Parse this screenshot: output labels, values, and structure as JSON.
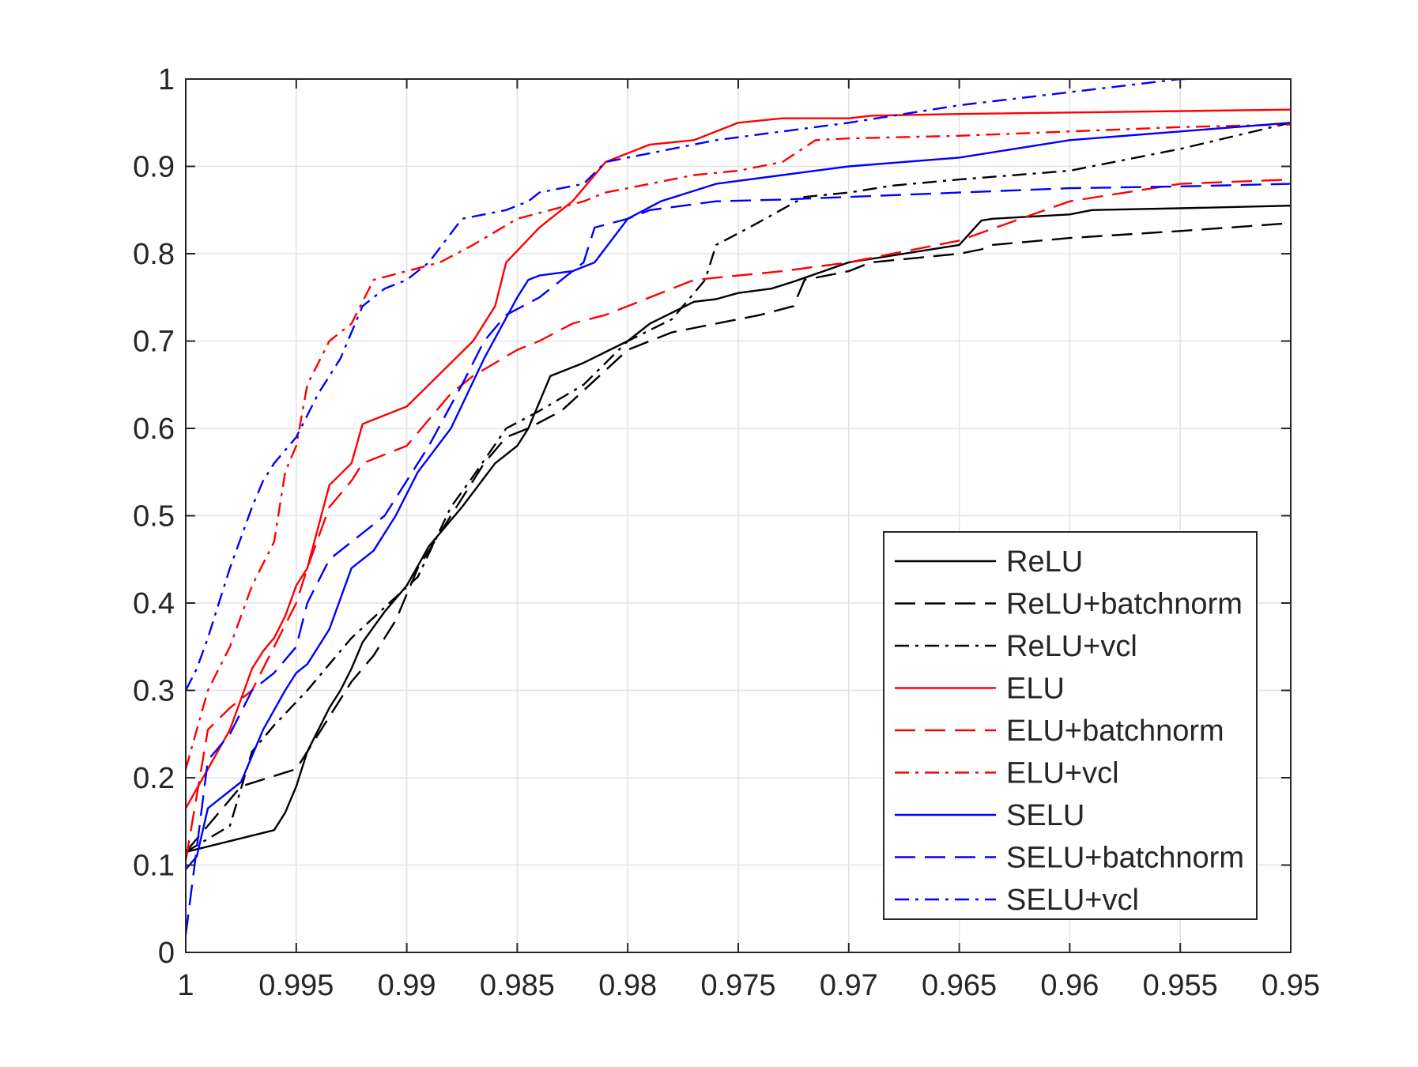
{
  "chart_data": {
    "type": "line",
    "title": "",
    "xlabel": "",
    "ylabel": "",
    "xlim": [
      1,
      0.95
    ],
    "ylim": [
      0,
      1
    ],
    "x_reversed": true,
    "grid": true,
    "legend_position": "bottom-right",
    "xticks": [
      1,
      0.995,
      0.99,
      0.985,
      0.98,
      0.975,
      0.97,
      0.965,
      0.96,
      0.955,
      0.95
    ],
    "xtick_labels": [
      "1",
      "0.995",
      "0.99",
      "0.985",
      "0.98",
      "0.975",
      "0.97",
      "0.965",
      "0.96",
      "0.955",
      "0.95"
    ],
    "yticks": [
      0,
      0.1,
      0.2,
      0.3,
      0.4,
      0.5,
      0.6,
      0.7,
      0.8,
      0.9,
      1
    ],
    "ytick_labels": [
      "0",
      "0.1",
      "0.2",
      "0.3",
      "0.4",
      "0.5",
      "0.6",
      "0.7",
      "0.8",
      "0.9",
      "1"
    ],
    "series": [
      {
        "name": "ReLU",
        "color": "#000000",
        "style": "solid",
        "x": [
          1,
          0.996,
          0.9955,
          0.995,
          0.9945,
          0.9935,
          0.993,
          0.9925,
          0.992,
          0.991,
          0.99,
          0.989,
          0.9875,
          0.986,
          0.985,
          0.9845,
          0.984,
          0.9835,
          0.982,
          0.98,
          0.979,
          0.977,
          0.976,
          0.975,
          0.9735,
          0.9725,
          0.97,
          0.965,
          0.964,
          0.9635,
          0.96,
          0.959,
          0.955,
          0.95
        ],
        "y": [
          0.115,
          0.14,
          0.16,
          0.19,
          0.23,
          0.28,
          0.3,
          0.325,
          0.355,
          0.39,
          0.42,
          0.465,
          0.51,
          0.56,
          0.58,
          0.6,
          0.63,
          0.66,
          0.675,
          0.7,
          0.72,
          0.745,
          0.748,
          0.755,
          0.76,
          0.768,
          0.79,
          0.81,
          0.838,
          0.84,
          0.845,
          0.85,
          0.852,
          0.855
        ]
      },
      {
        "name": "ReLU+batchnorm",
        "color": "#000000",
        "style": "dashed",
        "x": [
          1,
          0.9975,
          0.995,
          0.994,
          0.9925,
          0.9915,
          0.9905,
          0.9895,
          0.988,
          0.9865,
          0.9855,
          0.9845,
          0.983,
          0.98,
          0.978,
          0.976,
          0.974,
          0.9725,
          0.972,
          0.97,
          0.969,
          0.965,
          0.964,
          0.9635,
          0.96,
          0.955,
          0.95
        ],
        "y": [
          0.115,
          0.19,
          0.21,
          0.25,
          0.31,
          0.34,
          0.38,
          0.44,
          0.5,
          0.56,
          0.59,
          0.6,
          0.62,
          0.69,
          0.71,
          0.72,
          0.73,
          0.74,
          0.77,
          0.78,
          0.79,
          0.8,
          0.805,
          0.81,
          0.818,
          0.826,
          0.835
        ]
      },
      {
        "name": "ReLU+vcl",
        "color": "#000000",
        "style": "dashdot",
        "x": [
          1,
          0.998,
          0.997,
          0.996,
          0.9945,
          0.9935,
          0.9925,
          0.991,
          0.9895,
          0.988,
          0.987,
          0.9855,
          0.984,
          0.982,
          0.98,
          0.978,
          0.9765,
          0.976,
          0.9745,
          0.972,
          0.97,
          0.968,
          0.965,
          0.96,
          0.955,
          0.95
        ],
        "y": [
          0.115,
          0.145,
          0.23,
          0.26,
          0.3,
          0.33,
          0.36,
          0.395,
          0.43,
          0.51,
          0.545,
          0.6,
          0.62,
          0.65,
          0.7,
          0.725,
          0.77,
          0.81,
          0.83,
          0.865,
          0.87,
          0.878,
          0.885,
          0.895,
          0.92,
          0.95
        ]
      },
      {
        "name": "ELU",
        "color": "#ff0000",
        "style": "solid",
        "x": [
          1,
          0.999,
          0.998,
          0.997,
          0.9965,
          0.996,
          0.9955,
          0.995,
          0.9945,
          0.9935,
          0.9925,
          0.992,
          0.991,
          0.99,
          0.987,
          0.986,
          0.9855,
          0.984,
          0.9835,
          0.9825,
          0.981,
          0.9805,
          0.98,
          0.979,
          0.977,
          0.975,
          0.973,
          0.97,
          0.969,
          0.965,
          0.95
        ],
        "y": [
          0.165,
          0.21,
          0.255,
          0.325,
          0.345,
          0.36,
          0.385,
          0.42,
          0.44,
          0.535,
          0.56,
          0.605,
          0.615,
          0.625,
          0.7,
          0.74,
          0.79,
          0.83,
          0.84,
          0.86,
          0.905,
          0.91,
          0.915,
          0.925,
          0.93,
          0.95,
          0.955,
          0.955,
          0.958,
          0.96,
          0.965
        ]
      },
      {
        "name": "ELU+batchnorm",
        "color": "#ff0000",
        "style": "dashed",
        "x": [
          1,
          0.999,
          0.998,
          0.997,
          0.996,
          0.995,
          0.9945,
          0.9935,
          0.9925,
          0.992,
          0.99,
          0.988,
          0.987,
          0.985,
          0.984,
          0.9825,
          0.981,
          0.979,
          0.977,
          0.975,
          0.973,
          0.97,
          0.965,
          0.96,
          0.955,
          0.95
        ],
        "y": [
          0.105,
          0.255,
          0.28,
          0.3,
          0.35,
          0.4,
          0.44,
          0.51,
          0.54,
          0.56,
          0.58,
          0.64,
          0.66,
          0.69,
          0.7,
          0.72,
          0.73,
          0.75,
          0.77,
          0.775,
          0.78,
          0.79,
          0.815,
          0.86,
          0.88,
          0.885
        ]
      },
      {
        "name": "ELU+vcl",
        "color": "#ff0000",
        "style": "dashdot",
        "x": [
          1,
          0.999,
          0.998,
          0.997,
          0.996,
          0.9955,
          0.995,
          0.9945,
          0.9935,
          0.9925,
          0.9915,
          0.99,
          0.9885,
          0.987,
          0.985,
          0.9835,
          0.982,
          0.981,
          0.979,
          0.977,
          0.975,
          0.973,
          0.9715,
          0.97,
          0.965,
          0.96,
          0.955,
          0.95
        ],
        "y": [
          0.21,
          0.3,
          0.35,
          0.42,
          0.47,
          0.55,
          0.58,
          0.65,
          0.7,
          0.72,
          0.77,
          0.78,
          0.79,
          0.81,
          0.84,
          0.85,
          0.86,
          0.87,
          0.88,
          0.89,
          0.895,
          0.905,
          0.93,
          0.932,
          0.935,
          0.94,
          0.945,
          0.948
        ]
      },
      {
        "name": "SELU",
        "color": "#0000ff",
        "style": "solid",
        "x": [
          1,
          0.9995,
          0.999,
          0.9985,
          0.9975,
          0.9965,
          0.9955,
          0.995,
          0.9945,
          0.9935,
          0.9925,
          0.9915,
          0.9905,
          0.9895,
          0.988,
          0.9865,
          0.985,
          0.9845,
          0.984,
          0.9825,
          0.9815,
          0.98,
          0.9785,
          0.976,
          0.973,
          0.97,
          0.965,
          0.96,
          0.95
        ],
        "y": [
          0.095,
          0.11,
          0.165,
          0.175,
          0.195,
          0.255,
          0.3,
          0.32,
          0.33,
          0.37,
          0.44,
          0.46,
          0.5,
          0.55,
          0.6,
          0.68,
          0.75,
          0.77,
          0.775,
          0.78,
          0.79,
          0.84,
          0.86,
          0.88,
          0.89,
          0.9,
          0.91,
          0.93,
          0.95
        ]
      },
      {
        "name": "SELU+batchnorm",
        "color": "#0000ff",
        "style": "dashed",
        "x": [
          1,
          0.999,
          0.998,
          0.997,
          0.996,
          0.995,
          0.9945,
          0.9935,
          0.9925,
          0.991,
          0.99,
          0.989,
          0.9875,
          0.9865,
          0.9855,
          0.984,
          0.9825,
          0.982,
          0.9815,
          0.98,
          0.979,
          0.976,
          0.973,
          0.97,
          0.965,
          0.96,
          0.955,
          0.95
        ],
        "y": [
          0.02,
          0.22,
          0.25,
          0.3,
          0.32,
          0.35,
          0.4,
          0.45,
          0.47,
          0.5,
          0.54,
          0.58,
          0.65,
          0.7,
          0.73,
          0.75,
          0.78,
          0.79,
          0.83,
          0.84,
          0.85,
          0.86,
          0.862,
          0.865,
          0.87,
          0.875,
          0.877,
          0.88
        ]
      },
      {
        "name": "SELU+vcl",
        "color": "#0000ff",
        "style": "dashdot",
        "x": [
          1,
          0.9995,
          0.999,
          0.9985,
          0.998,
          0.997,
          0.9965,
          0.996,
          0.995,
          0.994,
          0.993,
          0.992,
          0.991,
          0.99,
          0.989,
          0.9875,
          0.9865,
          0.9855,
          0.9845,
          0.984,
          0.982,
          0.981,
          0.98,
          0.979,
          0.976,
          0.973,
          0.97,
          0.965,
          0.96,
          0.955,
          0.9545
        ],
        "y": [
          0.3,
          0.325,
          0.36,
          0.4,
          0.44,
          0.51,
          0.54,
          0.56,
          0.59,
          0.64,
          0.68,
          0.74,
          0.76,
          0.77,
          0.79,
          0.84,
          0.845,
          0.85,
          0.86,
          0.87,
          0.88,
          0.905,
          0.91,
          0.915,
          0.93,
          0.94,
          0.95,
          0.97,
          0.985,
          1.0,
          1.0
        ]
      }
    ]
  }
}
